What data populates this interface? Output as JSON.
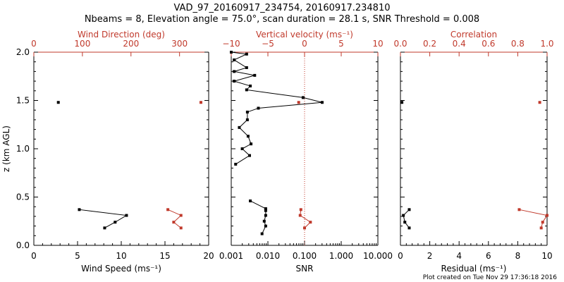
{
  "title": {
    "line1": "VAD_97_20160917_234754, 20160917.234810",
    "line2": "Nbeams = 8, Elevation angle = 75.0°, scan duration = 28.1 s, SNR Threshold = 0.008"
  },
  "footer": "Plot created on Tue Nov 29 17:36:18 2016",
  "colors": {
    "primary": "#000000",
    "secondary": "#c0392b"
  },
  "chart_data": [
    {
      "type": "line",
      "panel": "left",
      "ylabel": "z (km AGL)",
      "ylim": [
        0,
        2.0
      ],
      "yticks": [
        "0.0",
        "0.5",
        "1.0",
        "1.5",
        "2.0"
      ],
      "bottom_axis": {
        "label": "Wind Speed (ms⁻¹)",
        "range": [
          0,
          20
        ],
        "ticks": [
          "0",
          "5",
          "10",
          "15",
          "20"
        ]
      },
      "top_axis": {
        "label": "Wind Direction (deg)",
        "range": [
          0,
          360
        ],
        "ticks": [
          "0",
          "100",
          "200",
          "300"
        ]
      },
      "series": [
        {
          "axis": "bottom",
          "color": "#000000",
          "segments": [
            [
              {
                "x": 2.8,
                "y": 1.48
              }
            ],
            [
              {
                "x": 5.2,
                "y": 0.37
              },
              {
                "x": 10.6,
                "y": 0.31
              },
              {
                "x": 9.3,
                "y": 0.24
              },
              {
                "x": 8.1,
                "y": 0.18
              }
            ]
          ]
        },
        {
          "axis": "top",
          "color": "#c0392b",
          "segments": [
            [
              {
                "x": 344,
                "y": 1.48
              }
            ],
            [
              {
                "x": 276,
                "y": 0.37
              },
              {
                "x": 303,
                "y": 0.31
              },
              {
                "x": 288,
                "y": 0.24
              },
              {
                "x": 303,
                "y": 0.18
              }
            ]
          ]
        }
      ]
    },
    {
      "type": "line",
      "panel": "middle",
      "ylim": [
        0,
        2.0
      ],
      "bottom_axis": {
        "label": "SNR",
        "scale": "log",
        "range": [
          0.001,
          10
        ],
        "ticks": [
          "0.001",
          "0.010",
          "0.100",
          "1.000",
          "10.000"
        ]
      },
      "top_axis": {
        "label": "Vertical velocity (ms⁻¹)",
        "range": [
          -10,
          10
        ],
        "ticks": [
          "−10",
          "−5",
          "0",
          "5",
          "10"
        ]
      },
      "series": [
        {
          "axis": "top",
          "color": "#000000",
          "segments": [
            [
              {
                "x": -10,
                "y": 2.0
              },
              {
                "x": -7.9,
                "y": 1.98
              },
              {
                "x": -9.6,
                "y": 1.92
              },
              {
                "x": -7.9,
                "y": 1.84
              },
              {
                "x": -9.6,
                "y": 1.8
              },
              {
                "x": -6.8,
                "y": 1.76
              },
              {
                "x": -9.6,
                "y": 1.7
              },
              {
                "x": -7.4,
                "y": 1.65
              },
              {
                "x": -7.9,
                "y": 1.61
              },
              {
                "x": -0.2,
                "y": 1.53
              },
              {
                "x": 2.4,
                "y": 1.48
              },
              {
                "x": -6.3,
                "y": 1.42
              },
              {
                "x": -7.8,
                "y": 1.38
              },
              {
                "x": -7.8,
                "y": 1.3
              },
              {
                "x": -8.9,
                "y": 1.22
              },
              {
                "x": -7.7,
                "y": 1.13
              },
              {
                "x": -7.3,
                "y": 1.05
              },
              {
                "x": -8.5,
                "y": 1.0
              },
              {
                "x": -7.5,
                "y": 0.93
              },
              {
                "x": -9.4,
                "y": 0.84
              }
            ],
            [
              {
                "x": -7.4,
                "y": 0.46
              },
              {
                "x": -5.3,
                "y": 0.38
              },
              {
                "x": -5.3,
                "y": 0.36
              },
              {
                "x": -5.3,
                "y": 0.31
              },
              {
                "x": -5.5,
                "y": 0.25
              },
              {
                "x": -5.3,
                "y": 0.2
              },
              {
                "x": -5.8,
                "y": 0.12
              }
            ]
          ]
        },
        {
          "axis": "top",
          "color": "#c0392b",
          "segments": [
            [
              {
                "x": -0.8,
                "y": 1.48
              }
            ],
            [
              {
                "x": -0.5,
                "y": 0.37
              },
              {
                "x": -0.6,
                "y": 0.31
              },
              {
                "x": 0.8,
                "y": 0.24
              },
              {
                "x": 0.0,
                "y": 0.18
              }
            ]
          ]
        }
      ]
    },
    {
      "type": "line",
      "panel": "right",
      "ylim": [
        0,
        2.0
      ],
      "bottom_axis": {
        "label": "Residual (ms⁻¹)",
        "range": [
          0,
          10
        ],
        "ticks": [
          "0",
          "2",
          "4",
          "6",
          "8",
          "10"
        ]
      },
      "top_axis": {
        "label": "Correlation",
        "range": [
          0,
          1.0
        ],
        "ticks": [
          "0.0",
          "0.2",
          "0.4",
          "0.6",
          "0.8",
          "1.0"
        ]
      },
      "series": [
        {
          "axis": "bottom",
          "color": "#000000",
          "segments": [
            [
              {
                "x": 0.1,
                "y": 1.48
              }
            ],
            [
              {
                "x": 0.6,
                "y": 0.37
              },
              {
                "x": 0.2,
                "y": 0.31
              },
              {
                "x": 0.3,
                "y": 0.24
              },
              {
                "x": 0.6,
                "y": 0.18
              }
            ]
          ]
        },
        {
          "axis": "top",
          "color": "#c0392b",
          "segments": [
            [
              {
                "x": 0.95,
                "y": 1.48
              }
            ],
            [
              {
                "x": 0.81,
                "y": 0.37
              },
              {
                "x": 1.0,
                "y": 0.31
              },
              {
                "x": 0.97,
                "y": 0.24
              },
              {
                "x": 0.96,
                "y": 0.18
              }
            ]
          ]
        }
      ]
    }
  ]
}
